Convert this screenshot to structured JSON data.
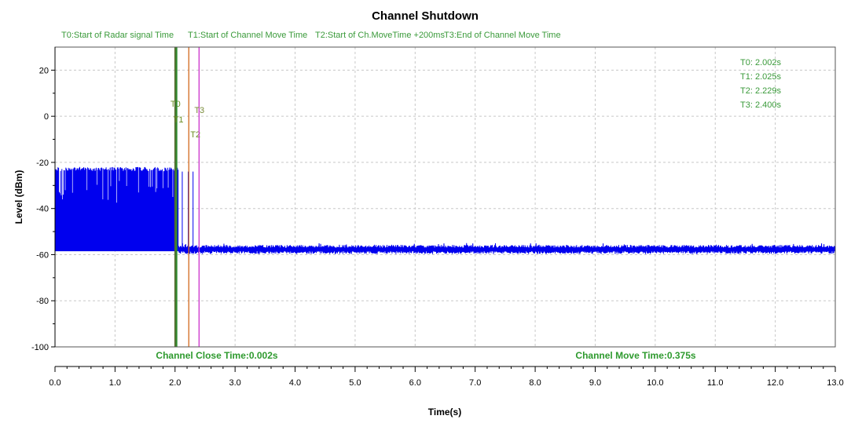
{
  "chart_data": {
    "type": "line",
    "title": "Channel Shutdown",
    "xlabel": "Time(s)",
    "ylabel": "Level (dBm)",
    "xlim": [
      0,
      13
    ],
    "ylim": [
      -100,
      30
    ],
    "x_ticks": [
      "0.0",
      "1.0",
      "2.0",
      "3.0",
      "4.0",
      "5.0",
      "6.0",
      "7.0",
      "8.0",
      "9.0",
      "10.0",
      "11.0",
      "12.0",
      "13.0"
    ],
    "y_ticks": [
      "20",
      "0",
      "-20",
      "-40",
      "-60",
      "-80",
      "-100"
    ],
    "grid": true,
    "legend": [
      "T0:Start of Radar signal Time",
      "T1:Start of Channel Move Time",
      "T2:Start of Ch.MoveTime +200ms",
      "T3:End of Channel Move Time"
    ],
    "legend_position": "top",
    "markers": [
      {
        "label": "T0",
        "x": 2.002,
        "color": "#556b2f"
      },
      {
        "label": "T1",
        "x": 2.025,
        "color": "#2e8b2e"
      },
      {
        "label": "T2",
        "x": 2.229,
        "color": "#d2691e"
      },
      {
        "label": "T3",
        "x": 2.4,
        "color": "#cc33cc"
      }
    ],
    "readouts": [
      "T0: 2.002s",
      "T1: 2.025s",
      "T2: 2.229s",
      "T3: 2.400s"
    ],
    "annotations": [
      "Channel Close Time:0.002s",
      "Channel Move Time:0.375s"
    ],
    "series": [
      {
        "color": "#0000ee",
        "description_values": {
          "burst_time_range": [
            0.0,
            2.06
          ],
          "burst_peak_level": -22,
          "noise_floor_level": -58,
          "noise_floor_peak": -55,
          "late_pulses_x": [
            2.12,
            2.22,
            2.3
          ]
        }
      }
    ]
  }
}
